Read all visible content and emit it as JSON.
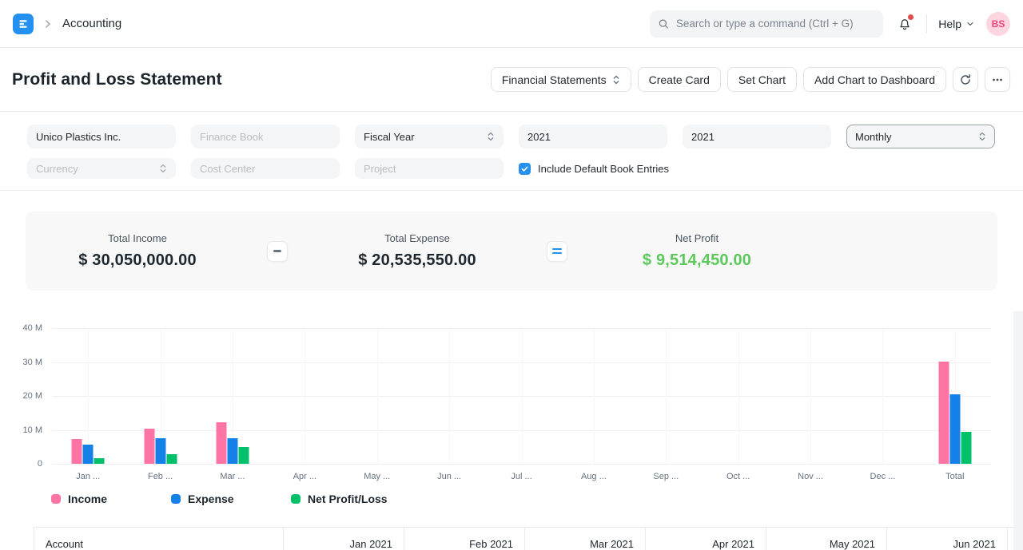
{
  "navbar": {
    "breadcrumb": "Accounting",
    "search_placeholder": "Search or type a command (Ctrl + G)",
    "help_label": "Help",
    "avatar_initials": "BS"
  },
  "page": {
    "title": "Profit and Loss Statement",
    "actions": {
      "report_select": "Financial Statements",
      "create_card": "Create Card",
      "set_chart": "Set Chart",
      "add_chart": "Add Chart to Dashboard"
    }
  },
  "filters": {
    "company": "Unico Plastics Inc.",
    "finance_book_placeholder": "Finance Book",
    "period_basis": "Fiscal Year",
    "start_year": "2021",
    "end_year": "2021",
    "periodicity": "Monthly",
    "currency_placeholder": "Currency",
    "cost_center_placeholder": "Cost Center",
    "project_placeholder": "Project",
    "include_default_book_entries": "Include Default Book Entries"
  },
  "summary": {
    "cards": [
      {
        "label": "Total Income",
        "value": "$ 30,050,000.00"
      },
      {
        "label": "Total Expense",
        "value": "$ 20,535,550.00"
      },
      {
        "label": "Net Profit",
        "value": "$ 9,514,450.00",
        "color": "#5cc95b"
      }
    ],
    "operators": [
      "-",
      "="
    ]
  },
  "chart_data": {
    "type": "bar",
    "title": "",
    "xlabel": "",
    "ylabel": "",
    "unit": "millions",
    "categories": [
      "Jan ...",
      "Feb ...",
      "Mar ...",
      "Apr ...",
      "May ...",
      "Jun ...",
      "Jul ...",
      "Aug ...",
      "Sep ...",
      "Oct ...",
      "Nov ...",
      "Dec ...",
      "Total"
    ],
    "series": [
      {
        "name": "Income",
        "color": "#ff74a4",
        "values": [
          7.3,
          10.4,
          12.35,
          0,
          0,
          0,
          0,
          0,
          0,
          0,
          0,
          0,
          30.05
        ]
      },
      {
        "name": "Expense",
        "color": "#1580e8",
        "values": [
          5.6,
          7.5,
          7.44,
          0,
          0,
          0,
          0,
          0,
          0,
          0,
          0,
          0,
          20.54
        ]
      },
      {
        "name": "Net Profit/Loss",
        "color": "#00c16a",
        "values": [
          1.7,
          2.9,
          4.91,
          0,
          0,
          0,
          0,
          0,
          0,
          0,
          0,
          0,
          9.51
        ]
      }
    ],
    "yticks": [
      {
        "label": "40 M",
        "value": 40
      },
      {
        "label": "30 M",
        "value": 30
      },
      {
        "label": "20 M",
        "value": 20
      },
      {
        "label": "10 M",
        "value": 10
      },
      {
        "label": "0",
        "value": 0
      }
    ],
    "ylim": [
      0,
      40
    ],
    "grid": true,
    "legend_position": "bottom"
  },
  "table": {
    "columns": [
      "Account",
      "Jan 2021",
      "Feb 2021",
      "Mar 2021",
      "Apr 2021",
      "May 2021",
      "Jun 2021"
    ]
  }
}
